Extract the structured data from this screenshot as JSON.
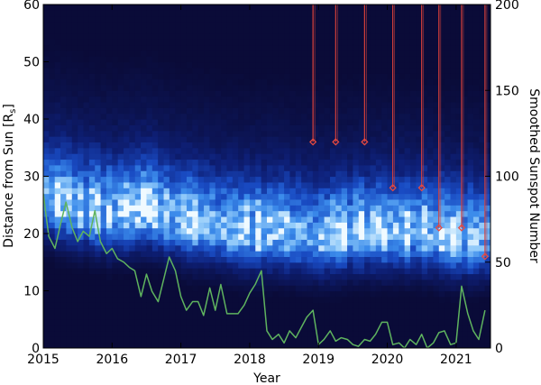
{
  "chart_data": [
    {
      "type": "heatmap",
      "xlabel": "Year",
      "ylabel_left_text": "Distance from Sun [R",
      "ylabel_left_sub": "s",
      "ylabel_left_close": "]",
      "ylabel_right": "Smoothed Sunspot Number",
      "xlim": [
        2015.0,
        2021.5
      ],
      "ylim_left": [
        0,
        60
      ],
      "ylim_right": [
        0,
        200
      ],
      "x_ticks": [
        2015,
        2016,
        2017,
        2018,
        2019,
        2020,
        2021
      ],
      "y_ticks_left": [
        0,
        10,
        20,
        30,
        40,
        50,
        60
      ],
      "y_ticks_right": [
        0,
        50,
        100,
        150,
        200
      ],
      "grid": false,
      "colormap": "blue-white",
      "heatmap_ridge_distance": [
        [
          2015.0,
          26
        ],
        [
          2015.5,
          24
        ],
        [
          2016.0,
          23
        ],
        [
          2016.5,
          24
        ],
        [
          2017.0,
          22
        ],
        [
          2017.5,
          21
        ],
        [
          2018.0,
          20
        ],
        [
          2018.5,
          20
        ],
        [
          2019.0,
          19
        ],
        [
          2019.5,
          20
        ],
        [
          2020.0,
          20
        ],
        [
          2020.5,
          20
        ],
        [
          2021.0,
          19
        ],
        [
          2021.5,
          19
        ]
      ],
      "series": [
        {
          "type": "line",
          "axis": "right",
          "color": "#5fb35f",
          "x": [
            2015.0,
            2015.08,
            2015.17,
            2015.25,
            2015.33,
            2015.42,
            2015.5,
            2015.58,
            2015.67,
            2015.75,
            2015.83,
            2015.92,
            2016.0,
            2016.08,
            2016.17,
            2016.25,
            2016.33,
            2016.42,
            2016.5,
            2016.58,
            2016.67,
            2016.75,
            2016.83,
            2016.92,
            2017.0,
            2017.08,
            2017.17,
            2017.25,
            2017.33,
            2017.42,
            2017.5,
            2017.58,
            2017.67,
            2017.75,
            2017.83,
            2017.92,
            2018.0,
            2018.08,
            2018.17,
            2018.25,
            2018.33,
            2018.42,
            2018.5,
            2018.58,
            2018.67,
            2018.75,
            2018.83,
            2018.92,
            2019.0,
            2019.08,
            2019.17,
            2019.25,
            2019.33,
            2019.42,
            2019.5,
            2019.58,
            2019.67,
            2019.75,
            2019.83,
            2019.92,
            2020.0,
            2020.08,
            2020.17,
            2020.25,
            2020.33,
            2020.42,
            2020.5,
            2020.58,
            2020.67,
            2020.75,
            2020.83,
            2020.92,
            2021.0,
            2021.08,
            2021.17,
            2021.25,
            2021.33,
            2021.42
          ],
          "values": [
            90,
            65,
            58,
            72,
            85,
            70,
            62,
            68,
            65,
            80,
            62,
            55,
            58,
            52,
            50,
            47,
            45,
            30,
            43,
            33,
            27,
            40,
            53,
            45,
            30,
            22,
            27,
            27,
            19,
            35,
            22,
            37,
            20,
            20,
            20,
            25,
            32,
            37,
            45,
            10,
            5,
            8,
            3,
            10,
            6,
            12,
            18,
            22,
            2,
            5,
            10,
            4,
            6,
            5,
            2,
            1,
            5,
            4,
            8,
            15,
            15,
            2,
            3,
            0,
            5,
            2,
            8,
            0,
            3,
            9,
            10,
            2,
            3,
            36,
            20,
            10,
            5,
            22
          ]
        }
      ],
      "red_markers": [
        {
          "x": 2018.92,
          "y": 36
        },
        {
          "x": 2019.25,
          "y": 36
        },
        {
          "x": 2019.67,
          "y": 36
        },
        {
          "x": 2020.08,
          "y": 28
        },
        {
          "x": 2020.5,
          "y": 28
        },
        {
          "x": 2020.75,
          "y": 21
        },
        {
          "x": 2021.08,
          "y": 21
        },
        {
          "x": 2021.42,
          "y": 16
        }
      ]
    }
  ]
}
